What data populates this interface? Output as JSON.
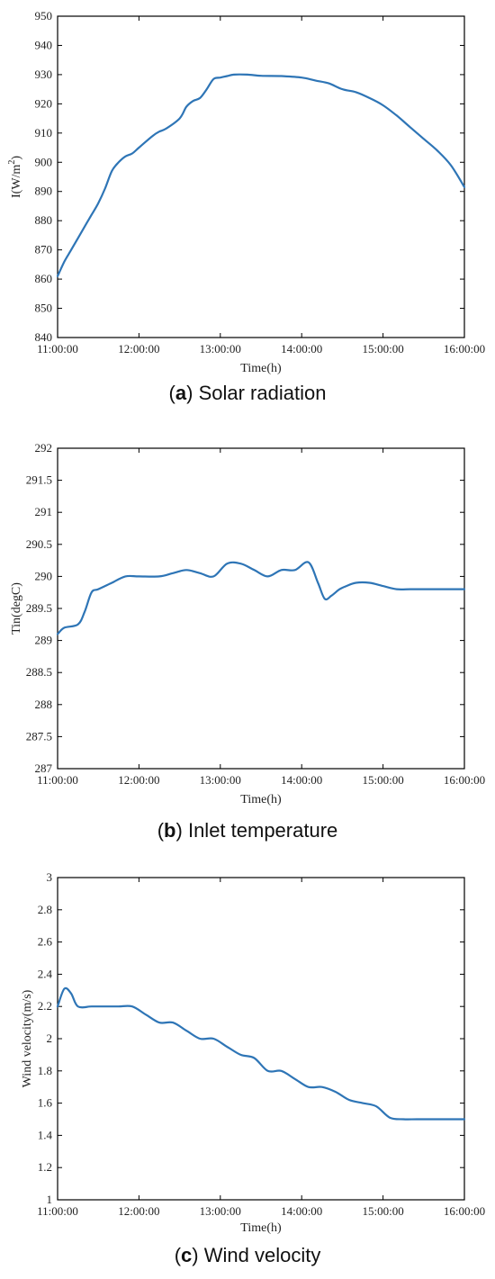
{
  "chart_data": [
    {
      "type": "line",
      "caption_letter": "a",
      "caption_text": "Solar radiation",
      "xlabel": "Time(h)",
      "ylabel": "I(W/m",
      "ylabel_sup": "2",
      "ylabel_end": ")",
      "x_ticks": [
        "11:00:00",
        "12:00:00",
        "13:00:00",
        "14:00:00",
        "15:00:00",
        "16:00:00"
      ],
      "xlim": [
        "11:00:00",
        "16:00:00"
      ],
      "ylim": [
        840,
        950
      ],
      "y_ticks": [
        840,
        850,
        860,
        870,
        880,
        890,
        900,
        910,
        920,
        930,
        940,
        950
      ],
      "color": "#2E75B6",
      "series": [
        {
          "x": [
            "11:00:00",
            "11:05:00",
            "11:10:00",
            "11:15:00",
            "11:20:00",
            "11:25:00",
            "11:30:00",
            "11:35:00",
            "11:40:00",
            "11:45:00",
            "11:50:00",
            "11:55:00",
            "12:00:00",
            "12:10:00",
            "12:15:00",
            "12:20:00",
            "12:30:00",
            "12:35:00",
            "12:40:00",
            "12:45:00",
            "12:50:00",
            "12:55:00",
            "13:00:00",
            "13:05:00",
            "13:10:00",
            "13:20:00",
            "13:30:00",
            "13:45:00",
            "14:00:00",
            "14:10:00",
            "14:20:00",
            "14:30:00",
            "14:40:00",
            "14:50:00",
            "15:00:00",
            "15:10:00",
            "15:20:00",
            "15:30:00",
            "15:40:00",
            "15:50:00",
            "16:00:00"
          ],
          "y": [
            861,
            866,
            870,
            874,
            878,
            882,
            886,
            891,
            897,
            900,
            902,
            903,
            905,
            909,
            910.5,
            911.5,
            915,
            919,
            921,
            922,
            925,
            928.5,
            929,
            929.5,
            930,
            930,
            929.6,
            929.5,
            929,
            928,
            927,
            925,
            924,
            922,
            919.5,
            916,
            912,
            908,
            904,
            899,
            891.5
          ]
        }
      ]
    },
    {
      "type": "line",
      "caption_letter": "b",
      "caption_text": "Inlet temperature",
      "xlabel": "Time(h)",
      "ylabel": "Tin(degC)",
      "x_ticks": [
        "11:00:00",
        "12:00:00",
        "13:00:00",
        "14:00:00",
        "15:00:00",
        "16:00:00"
      ],
      "xlim": [
        "11:00:00",
        "16:00:00"
      ],
      "ylim": [
        287,
        292
      ],
      "y_ticks": [
        "287",
        "287.5",
        "288",
        "288.5",
        "289",
        "289.5",
        "290",
        "290.5",
        "291",
        "291.5",
        "292"
      ],
      "color": "#2E75B6",
      "series": [
        {
          "x": [
            "11:00:00",
            "11:05:00",
            "11:15:00",
            "11:20:00",
            "11:25:00",
            "11:30:00",
            "11:40:00",
            "11:50:00",
            "12:00:00",
            "12:15:00",
            "12:25:00",
            "12:35:00",
            "12:45:00",
            "12:55:00",
            "13:05:00",
            "13:15:00",
            "13:25:00",
            "13:35:00",
            "13:45:00",
            "13:55:00",
            "14:05:00",
            "14:12:00",
            "14:17:00",
            "14:22:00",
            "14:28:00",
            "14:33:00",
            "14:40:00",
            "14:50:00",
            "15:00:00",
            "15:10:00",
            "15:20:00",
            "15:30:00",
            "15:40:00",
            "16:00:00"
          ],
          "y": [
            289.1,
            289.2,
            289.25,
            289.45,
            289.75,
            289.8,
            289.9,
            290,
            290,
            290,
            290.05,
            290.1,
            290.05,
            290,
            290.2,
            290.2,
            290.1,
            290,
            290.1,
            290.1,
            290.22,
            289.9,
            289.65,
            289.7,
            289.8,
            289.85,
            289.9,
            289.9,
            289.85,
            289.8,
            289.8,
            289.8,
            289.8,
            289.8
          ]
        }
      ]
    },
    {
      "type": "line",
      "caption_letter": "c",
      "caption_text": "Wind velocity",
      "xlabel": "Time(h)",
      "ylabel": "Wind velocity(m/s)",
      "x_ticks": [
        "11:00:00",
        "12:00:00",
        "13:00:00",
        "14:00:00",
        "15:00:00",
        "16:00:00"
      ],
      "xlim": [
        "11:00:00",
        "16:00:00"
      ],
      "ylim": [
        1,
        3
      ],
      "y_ticks": [
        "1",
        "1.2",
        "1.4",
        "1.6",
        "1.8",
        "2",
        "2.2",
        "2.4",
        "2.6",
        "2.8",
        "3"
      ],
      "color": "#2E75B6",
      "series": [
        {
          "x": [
            "11:00:00",
            "11:05:00",
            "11:10:00",
            "11:15:00",
            "11:25:00",
            "11:35:00",
            "11:45:00",
            "11:55:00",
            "12:05:00",
            "12:15:00",
            "12:25:00",
            "12:35:00",
            "12:45:00",
            "12:55:00",
            "13:05:00",
            "13:15:00",
            "13:25:00",
            "13:35:00",
            "13:45:00",
            "13:55:00",
            "14:05:00",
            "14:15:00",
            "14:25:00",
            "14:35:00",
            "14:45:00",
            "14:55:00",
            "15:05:00",
            "15:15:00",
            "15:25:00",
            "15:40:00",
            "16:00:00"
          ],
          "y": [
            2.2,
            2.31,
            2.28,
            2.2,
            2.2,
            2.2,
            2.2,
            2.2,
            2.15,
            2.1,
            2.1,
            2.05,
            2,
            2,
            1.95,
            1.9,
            1.88,
            1.8,
            1.8,
            1.75,
            1.7,
            1.7,
            1.67,
            1.62,
            1.6,
            1.58,
            1.51,
            1.5,
            1.5,
            1.5,
            1.5
          ]
        }
      ]
    }
  ]
}
